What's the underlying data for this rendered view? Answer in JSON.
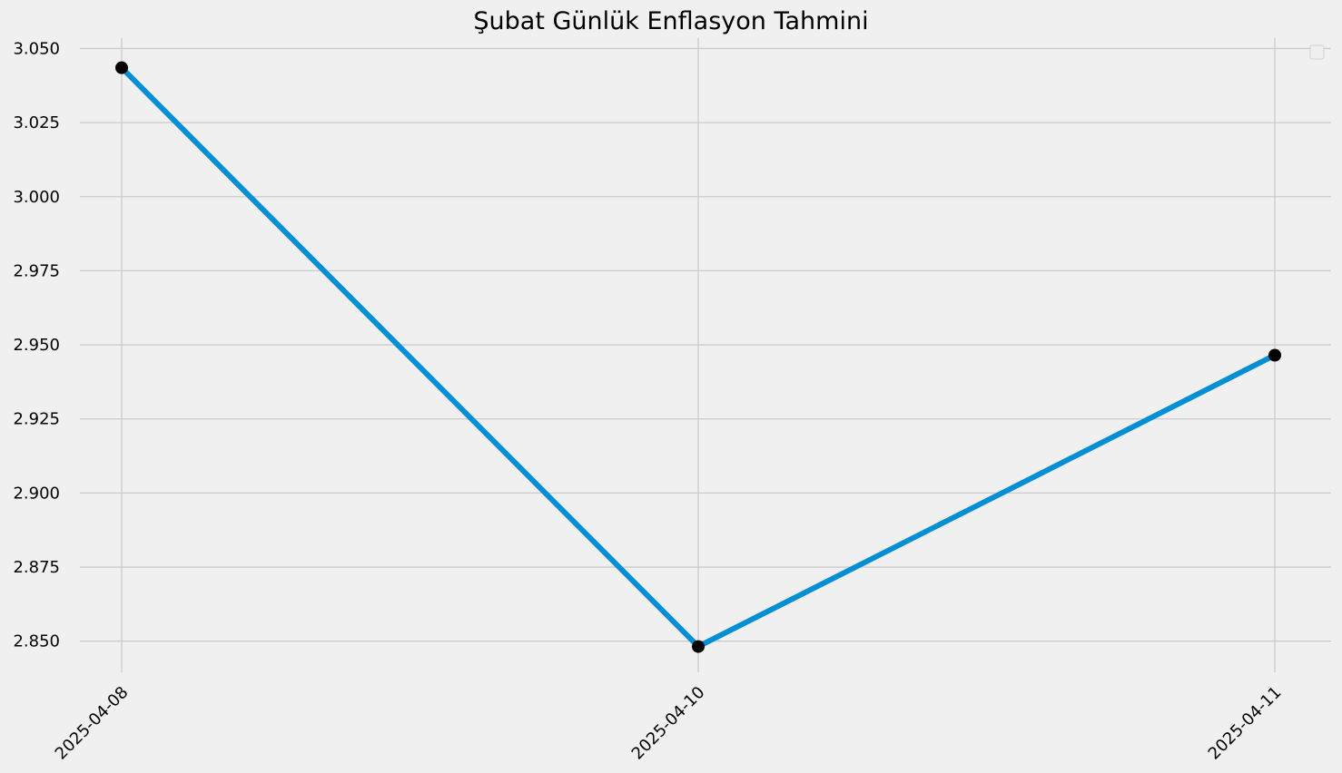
{
  "chart_data": {
    "type": "line",
    "title": "Şubat Günlük Enflasyon Tahmini",
    "xlabel": "",
    "ylabel": "",
    "categories": [
      "2025-04-08",
      "2025-04-10",
      "2025-04-11"
    ],
    "series": [
      {
        "values": [
          3.0435,
          2.8482,
          2.9465
        ],
        "line_color": "#008fd5",
        "marker_color": "#000000"
      }
    ],
    "ylim": [
      2.8395,
      3.0535
    ],
    "y_ticks": [
      "2.850",
      "2.875",
      "2.900",
      "2.925",
      "2.950",
      "2.975",
      "3.000",
      "3.025",
      "3.050"
    ],
    "grid": true,
    "legend": "top-right (empty)",
    "colors": {
      "background": "#f0f0f0",
      "grid": "#cbcbcb",
      "line": "#008fd5",
      "marker": "#000000"
    }
  }
}
